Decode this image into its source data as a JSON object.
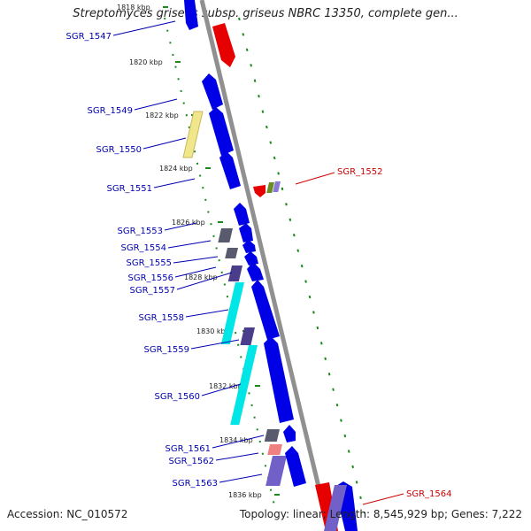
{
  "title": "Streptomyces griseus subsp. griseus NBRC 13350, complete gen...",
  "accession": "Accession: NC_010572",
  "summary": "Topology: linear; Length: 8,545,929 bp; Genes: 7,222",
  "colors": {
    "forward_gene": "#0000e6",
    "reverse_gene": "#e60000",
    "highlight_yellow": "#f0e68c",
    "highlight_cyan": "#00e5e5",
    "highlight_gray": "#5a5a6e",
    "highlight_purple": "#6a5acd",
    "highlight_pink": "#f08080",
    "label_forward": "#0000b0",
    "label_reverse": "#cc0000",
    "backbone": "#909090",
    "tick": "#1a8a1a"
  },
  "kbp_ticks": [
    "1818 kbp",
    "1820 kbp",
    "1822 kbp",
    "1824 kbp",
    "1826 kbp",
    "1828 kbp",
    "1830 kbp",
    "1832 kbp",
    "1834 kbp",
    "1836 kbp"
  ],
  "genes_left": [
    "SGR_1547",
    "SGR_1549",
    "SGR_1550",
    "SGR_1551",
    "SGR_1553",
    "SGR_1554",
    "SGR_1555",
    "SGR_1556",
    "SGR_1557",
    "SGR_1558",
    "SGR_1559",
    "SGR_1560",
    "SGR_1561",
    "SGR_1562",
    "SGR_1563"
  ],
  "genes_right": [
    "SGR_1552",
    "SGR_1564"
  ]
}
